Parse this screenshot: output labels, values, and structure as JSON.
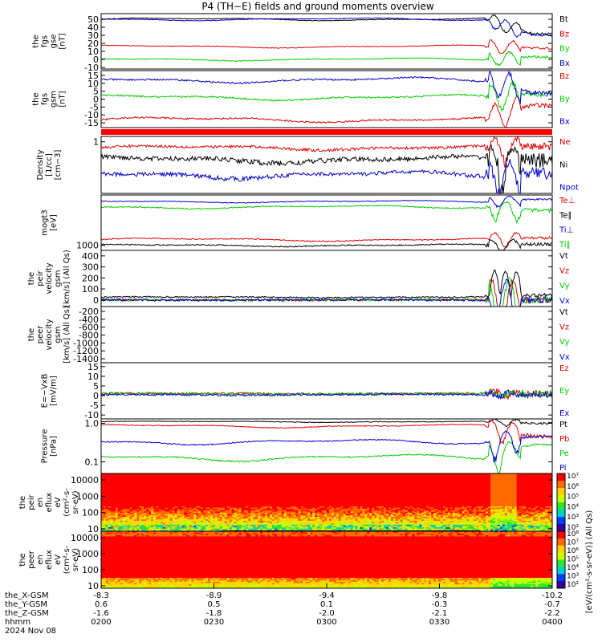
{
  "title": "P4 (TH−E) fields and ground moments overview",
  "colors": {
    "black": "#000000",
    "red": "#e00000",
    "green": "#00cc00",
    "blue": "#0000cc",
    "bar_red": "#ff0000"
  },
  "chart_data": [
    {
      "type": "line",
      "id": "fgs_mag",
      "ylabel": [
        "the",
        "fgs",
        "gse",
        "[nT]"
      ],
      "ylim": [
        -12,
        57
      ],
      "yticks": [
        "50",
        "40",
        "30",
        "20",
        "10",
        "0",
        "-10"
      ],
      "series": [
        {
          "name": "Bt",
          "color": "black",
          "base": 50,
          "amp": 2,
          "noise": 0.4,
          "end": 32
        },
        {
          "name": "Bz",
          "color": "red",
          "base": 16,
          "amp": 2,
          "noise": 0.4,
          "end": 14
        },
        {
          "name": "By",
          "color": "green",
          "base": 0,
          "amp": 2,
          "noise": 0.5,
          "end": 3
        },
        {
          "name": "Bx",
          "color": "blue",
          "base": 50,
          "amp": 2,
          "noise": 0.4,
          "end": 30
        }
      ]
    },
    {
      "type": "line",
      "id": "fgs_gsm",
      "ylabel": [
        "the",
        "fgs",
        "gsm",
        "[nT]"
      ],
      "ylim": [
        -18,
        18
      ],
      "yticks": [
        "15",
        "10",
        "5",
        "0",
        "-5",
        "-10",
        "-15"
      ],
      "series": [
        {
          "name": "Bz",
          "color": "red",
          "base": -13,
          "amp": 2,
          "noise": 0.5,
          "end": -4
        },
        {
          "name": "By",
          "color": "green",
          "base": 1,
          "amp": 2,
          "noise": 0.5,
          "end": 3
        },
        {
          "name": "Bx",
          "color": "blue",
          "base": 12,
          "amp": 2,
          "noise": 0.5,
          "end": 4
        }
      ]
    },
    {
      "type": "line",
      "id": "density",
      "scale": "log",
      "ylabel": [
        "Density",
        "[1/cc]",
        "[cm−3]"
      ],
      "ylim": [
        0.08,
        1.3
      ],
      "yticks": [
        "1"
      ],
      "series": [
        {
          "name": "Ne",
          "color": "red",
          "base": 0.75,
          "amp": 0.1,
          "noise": 0.05,
          "end": 0.8
        },
        {
          "name": "Ni",
          "color": "black",
          "base": 0.42,
          "amp": 0.08,
          "noise": 0.05,
          "end": 0.42
        },
        {
          "name": "Npot",
          "color": "blue",
          "base": 0.2,
          "amp": 0.04,
          "noise": 0.02,
          "end": 0.22
        }
      ]
    },
    {
      "type": "line",
      "id": "temperature",
      "scale": "log",
      "ylabel": [
        "mogt3",
        "[eV]"
      ],
      "ylim": [
        700,
        35000
      ],
      "yticks": [
        "1000"
      ],
      "series": [
        {
          "name": "Te⊥",
          "color": "red",
          "base": 1500,
          "amp": 200,
          "noise": 50,
          "end": 1700
        },
        {
          "name": "Te∥",
          "color": "black",
          "base": 1000,
          "amp": 100,
          "noise": 40,
          "end": 1100
        },
        {
          "name": "Ti⊥",
          "color": "blue",
          "base": 22000,
          "amp": 2000,
          "noise": 500,
          "end": 26000
        },
        {
          "name": "Ti∥",
          "color": "green",
          "base": 15000,
          "amp": 2000,
          "noise": 500,
          "end": 12000
        }
      ]
    },
    {
      "type": "line",
      "id": "peir_velocity",
      "ylabel": [
        "the",
        "peir",
        "velocity",
        "gsm",
        "[km/s] (All Qs)"
      ],
      "ylim": [
        -60,
        450
      ],
      "yticks": [
        "400",
        "300",
        "200",
        "100",
        "0"
      ],
      "series": [
        {
          "name": "Vt",
          "color": "black",
          "base": 25,
          "amp": 5,
          "noise": 6,
          "end": 40
        },
        {
          "name": "Vz",
          "color": "red",
          "base": 0,
          "amp": 3,
          "noise": 10,
          "end": 0
        },
        {
          "name": "Vy",
          "color": "green",
          "base": 0,
          "amp": 3,
          "noise": 10,
          "end": 0
        },
        {
          "name": "Vx",
          "color": "blue",
          "base": 0,
          "amp": 3,
          "noise": 10,
          "end": 0
        }
      ]
    },
    {
      "type": "line",
      "id": "peer_velocity",
      "ylabel": [
        "the",
        "peer",
        "velocity",
        "gsm",
        "[km/s] (All Qs)"
      ],
      "ylim": [
        -1500,
        -80
      ],
      "yticks": [
        "-200",
        "-400",
        "-600",
        "-800",
        "-1000",
        "-1200",
        "-1400"
      ],
      "series": [
        {
          "name": "Vt",
          "color": "black"
        },
        {
          "name": "Vz",
          "color": "red"
        },
        {
          "name": "Vy",
          "color": "green"
        },
        {
          "name": "Vx",
          "color": "blue"
        }
      ]
    },
    {
      "type": "line",
      "id": "efield",
      "ylabel": [
        "E=−VxB",
        "[mV/m]"
      ],
      "ylim": [
        -12,
        17
      ],
      "yticks": [
        "15",
        "10",
        "5",
        "0",
        "-5",
        "-10"
      ],
      "series": [
        {
          "name": "Ez",
          "color": "red",
          "base": 1,
          "amp": 0.3,
          "noise": 0.6,
          "end": 1
        },
        {
          "name": "Ey",
          "color": "green",
          "base": 1,
          "amp": 0.3,
          "noise": 0.6,
          "end": 1
        },
        {
          "name": "Ex",
          "color": "blue",
          "base": 0.5,
          "amp": 0.3,
          "noise": 0.5,
          "end": 0.5
        }
      ]
    },
    {
      "type": "line",
      "id": "pressure",
      "scale": "log",
      "ylabel": [
        "Pressure",
        "[nPa]"
      ],
      "ylim": [
        0.05,
        1.3
      ],
      "yticks": [
        "1.0",
        "0.1"
      ],
      "series": [
        {
          "name": "Pt",
          "color": "black",
          "base": 1.1,
          "amp": 0.05,
          "noise": 0.02,
          "end": 1.0
        },
        {
          "name": "Pb",
          "color": "red",
          "base": 0.85,
          "amp": 0.1,
          "noise": 0.02,
          "end": 0.45
        },
        {
          "name": "Pe",
          "color": "green",
          "base": 0.13,
          "amp": 0.03,
          "noise": 0.005,
          "end": 0.28
        },
        {
          "name": "Pi",
          "color": "blue",
          "base": 0.33,
          "amp": 0.06,
          "noise": 0.01,
          "end": 0.45
        }
      ]
    },
    {
      "type": "heatmap",
      "id": "peir_eflux",
      "scale": "log",
      "ylabel": [
        "the",
        "peir",
        "en",
        "eflux",
        "eV",
        "(cm²-s-",
        "sr-eV)"
      ],
      "ylim": [
        7,
        25000
      ],
      "yticks": [
        "10000",
        "1000",
        "100",
        "10"
      ]
    },
    {
      "type": "heatmap",
      "id": "peer_eflux",
      "scale": "log",
      "ylabel": [
        "the",
        "peer",
        "en",
        "eflux",
        "eV",
        "(cm²-s-",
        "sr-eV)"
      ],
      "ylim": [
        7,
        25000
      ],
      "yticks": [
        "10000",
        "1000",
        "100",
        "10"
      ]
    }
  ],
  "colorbars": [
    {
      "ticks": [
        "10⁷",
        "10⁶",
        "10⁵",
        "10⁴",
        "10³",
        "10²"
      ],
      "label": "[eV/(cm²-s-sr-eV)] (All Qs)"
    },
    {
      "ticks": [
        "10⁸",
        "10⁷",
        "10⁶",
        "10⁵",
        "10⁴",
        "10³",
        "10²"
      ]
    }
  ],
  "x_axis": {
    "row_labels": [
      "the_X-GSM",
      "the_Y-GSM",
      "the_Z-GSM",
      "hhmm",
      "2024 Nov 08"
    ],
    "ticks": [
      {
        "x_gsm": "-8.3",
        "y_gsm": "0.6",
        "z_gsm": "-1.6",
        "hhmm": "0200"
      },
      {
        "x_gsm": "-8.9",
        "y_gsm": "0.5",
        "z_gsm": "-1.8",
        "hhmm": "0230"
      },
      {
        "x_gsm": "-9.4",
        "y_gsm": "0.1",
        "z_gsm": "-2.0",
        "hhmm": "0300"
      },
      {
        "x_gsm": "-9.8",
        "y_gsm": "-0.3",
        "z_gsm": "-2.1",
        "hhmm": "0330"
      },
      {
        "x_gsm": "-10.2",
        "y_gsm": "-0.7",
        "z_gsm": "-2.2",
        "hhmm": "0400"
      }
    ]
  }
}
